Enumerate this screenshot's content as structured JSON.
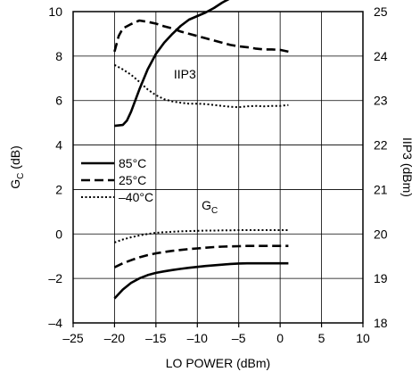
{
  "chart_data": {
    "type": "line",
    "xlabel": "LO POWER (dBm)",
    "ylabel_left": "G",
    "ylabel_left_sub": "C",
    "ylabel_left_unit": " (dB)",
    "ylabel_right": "IIP3 (dBm)",
    "xlim": [
      -25,
      10
    ],
    "ylim_left": [
      -4,
      10
    ],
    "ylim_right": [
      18,
      25
    ],
    "grid": true,
    "legend_position": "center-left",
    "x_ticks": [
      -25,
      -20,
      -15,
      -10,
      -5,
      0,
      5,
      10
    ],
    "x_tick_labels": [
      "–25",
      "–20",
      "–15",
      "–10",
      "–5",
      "0",
      "5",
      "10"
    ],
    "y_left_ticks": [
      -4,
      -2,
      0,
      2,
      4,
      6,
      8,
      10
    ],
    "y_left_tick_labels": [
      "–4",
      "–2",
      "0",
      "2",
      "4",
      "6",
      "8",
      "10"
    ],
    "y_right_ticks": [
      18,
      19,
      20,
      21,
      22,
      23,
      24,
      25
    ],
    "y_right_tick_labels": [
      "18",
      "19",
      "20",
      "21",
      "22",
      "23",
      "24",
      "25"
    ],
    "annotations": [
      {
        "text": "IIP3",
        "x": -11.5,
        "y_left": 7,
        "sub": ""
      },
      {
        "text": "G",
        "x": -8.5,
        "y_left": 1.1,
        "sub": "C"
      }
    ],
    "legend": [
      {
        "name": "85°C",
        "dash": "solid"
      },
      {
        "name": "25°C",
        "dash": "dashed"
      },
      {
        "name": "–40°C",
        "dash": "dotted"
      }
    ],
    "series": [
      {
        "name": "85°C",
        "group": "IIP3",
        "axis": "right",
        "dash": "solid",
        "x": [
          -20,
          -19,
          -18.5,
          -18,
          -17,
          -16,
          -15,
          -14,
          -13,
          -12,
          -11,
          -10,
          -9,
          -8,
          -7,
          -6,
          -5,
          -4,
          -3,
          -2,
          -1,
          0,
          1
        ],
        "y": [
          22.43,
          22.45,
          22.55,
          22.75,
          23.25,
          23.7,
          24.05,
          24.3,
          24.5,
          24.68,
          24.82,
          24.9,
          24.98,
          25.08,
          25.2,
          25.3,
          25.37,
          25.4,
          25.42,
          25.43,
          25.44,
          25.45,
          25.45
        ]
      },
      {
        "name": "25°C",
        "group": "IIP3",
        "axis": "right",
        "dash": "dashed",
        "x": [
          -20,
          -19.5,
          -19,
          -18,
          -17,
          -16,
          -15,
          -14,
          -13,
          -12,
          -11,
          -10,
          -9,
          -8,
          -7,
          -6,
          -5,
          -4,
          -3,
          -2,
          -1,
          0,
          1
        ],
        "y": [
          24.1,
          24.45,
          24.62,
          24.72,
          24.8,
          24.77,
          24.73,
          24.67,
          24.62,
          24.55,
          24.5,
          24.45,
          24.4,
          24.35,
          24.3,
          24.25,
          24.22,
          24.2,
          24.17,
          24.15,
          24.15,
          24.14,
          24.1
        ]
      },
      {
        "name": "–40°C",
        "group": "IIP3",
        "axis": "right",
        "dash": "dotted",
        "x": [
          -20,
          -19,
          -18,
          -17,
          -16,
          -15,
          -14,
          -13,
          -12,
          -11,
          -10,
          -9,
          -8,
          -7,
          -6,
          -5,
          -4,
          -3,
          -2,
          -1,
          0,
          1
        ],
        "y": [
          23.8,
          23.7,
          23.58,
          23.42,
          23.25,
          23.12,
          23.03,
          22.98,
          22.95,
          22.93,
          22.93,
          22.92,
          22.9,
          22.88,
          22.86,
          22.85,
          22.87,
          22.88,
          22.87,
          22.88,
          22.88,
          22.9
        ]
      },
      {
        "name": "85°C",
        "group": "G_C",
        "axis": "left",
        "dash": "solid",
        "x": [
          -20,
          -19,
          -18,
          -17,
          -16,
          -15,
          -14,
          -13,
          -12,
          -11,
          -10,
          -9,
          -8,
          -7,
          -6,
          -5,
          -4,
          -3,
          -2,
          -1,
          0,
          1
        ],
        "y": [
          -2.9,
          -2.5,
          -2.2,
          -2.0,
          -1.85,
          -1.75,
          -1.68,
          -1.62,
          -1.57,
          -1.52,
          -1.48,
          -1.44,
          -1.41,
          -1.38,
          -1.35,
          -1.33,
          -1.32,
          -1.32,
          -1.32,
          -1.32,
          -1.32,
          -1.32
        ]
      },
      {
        "name": "25°C",
        "group": "G_C",
        "axis": "left",
        "dash": "dashed",
        "x": [
          -20,
          -19,
          -18,
          -17,
          -16,
          -15,
          -14,
          -13,
          -12,
          -11,
          -10,
          -9,
          -8,
          -7,
          -6,
          -5,
          -4,
          -3,
          -2,
          -1,
          0,
          1
        ],
        "y": [
          -1.5,
          -1.32,
          -1.18,
          -1.05,
          -0.95,
          -0.87,
          -0.81,
          -0.76,
          -0.72,
          -0.68,
          -0.65,
          -0.62,
          -0.59,
          -0.57,
          -0.56,
          -0.55,
          -0.54,
          -0.54,
          -0.54,
          -0.54,
          -0.54,
          -0.54
        ]
      },
      {
        "name": "–40°C",
        "group": "G_C",
        "axis": "left",
        "dash": "dotted",
        "x": [
          -20,
          -19,
          -18,
          -17,
          -16,
          -15,
          -14,
          -13,
          -12,
          -11,
          -10,
          -9,
          -8,
          -7,
          -6,
          -5,
          -4,
          -3,
          -2,
          -1,
          0,
          1
        ],
        "y": [
          -0.38,
          -0.25,
          -0.15,
          -0.07,
          0.0,
          0.05,
          0.08,
          0.1,
          0.12,
          0.13,
          0.14,
          0.15,
          0.15,
          0.16,
          0.16,
          0.17,
          0.17,
          0.17,
          0.17,
          0.17,
          0.17,
          0.17
        ]
      }
    ]
  }
}
